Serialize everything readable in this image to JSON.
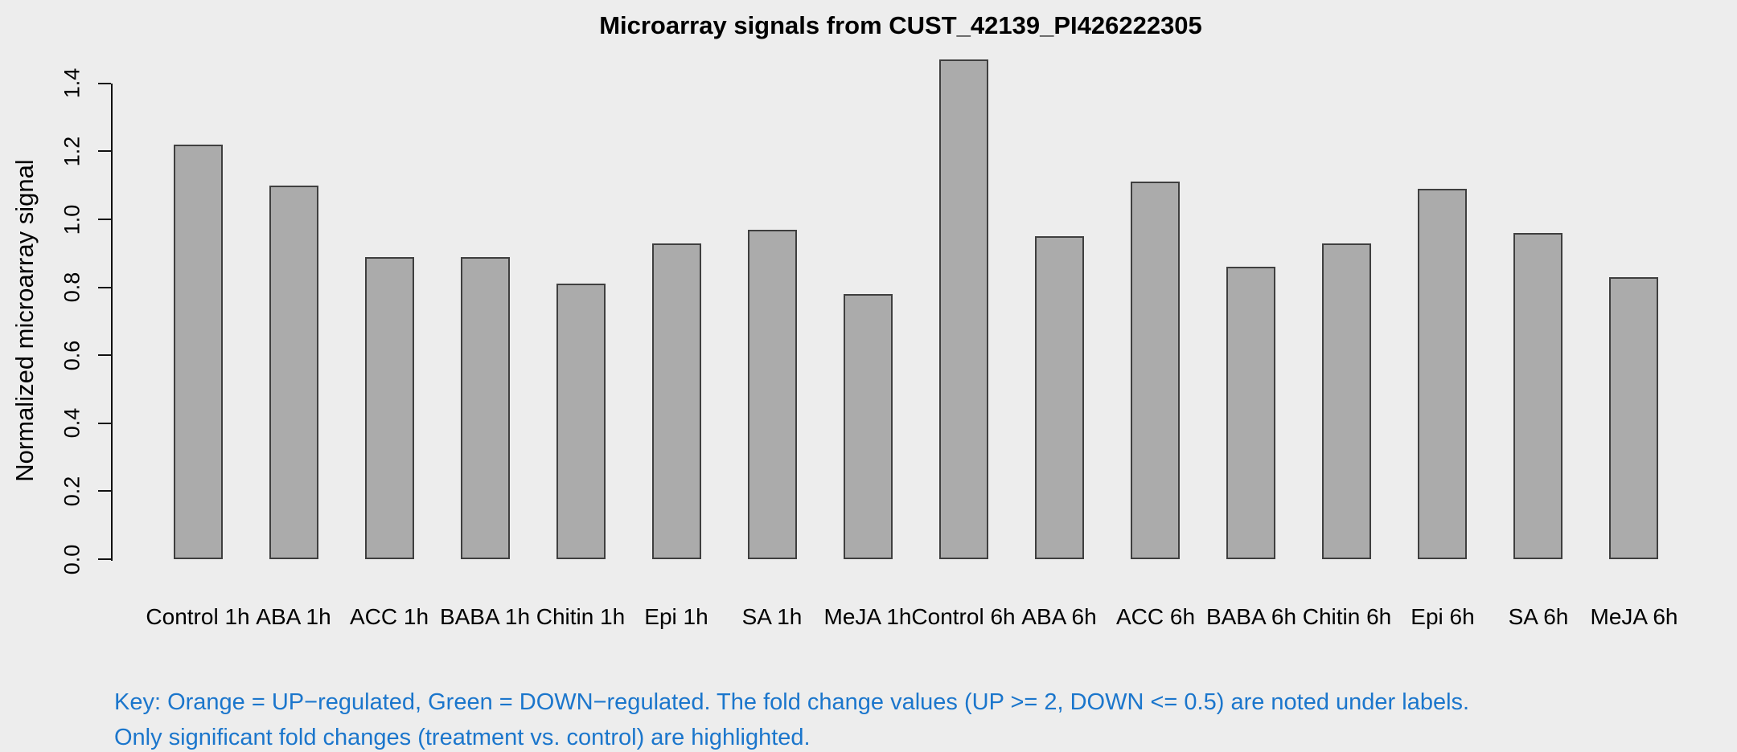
{
  "chart_data": {
    "type": "bar",
    "title": "Microarray signals from CUST_42139_PI426222305",
    "xlabel": "",
    "ylabel": "Normalized microarray signal",
    "categories": [
      "Control 1h",
      "ABA 1h",
      "ACC 1h",
      "BABA 1h",
      "Chitin 1h",
      "Epi 1h",
      "SA 1h",
      "MeJA 1h",
      "Control 6h",
      "ABA 6h",
      "ACC 6h",
      "BABA 6h",
      "Chitin 6h",
      "Epi 6h",
      "SA 6h",
      "MeJA 6h"
    ],
    "values": [
      1.22,
      1.1,
      0.89,
      0.89,
      0.81,
      0.93,
      0.97,
      0.78,
      1.47,
      0.95,
      1.11,
      0.86,
      0.93,
      1.09,
      0.96,
      0.83
    ],
    "ylim": [
      0,
      1.4
    ],
    "yticks": [
      0.0,
      0.2,
      0.4,
      0.6,
      0.8,
      1.0,
      1.2,
      1.4
    ],
    "ytick_labels": [
      "0.0",
      "0.2",
      "0.4",
      "0.6",
      "0.8",
      "1.0",
      "1.2",
      "1.4"
    ],
    "grid": false,
    "legend": "none",
    "colors": {
      "background": "#EDEDED",
      "bar_fill": "#ABABAB",
      "bar_border": "#3F3F3F",
      "axis": "#111111",
      "text": "#000000"
    }
  },
  "key": {
    "line1": "Key: Orange = UP−regulated, Green = DOWN−regulated. The fold change values (UP >= 2, DOWN <= 0.5) are noted under labels.",
    "line2": "Only significant fold changes (treatment vs. control) are highlighted.",
    "color": "#1B76CC"
  }
}
